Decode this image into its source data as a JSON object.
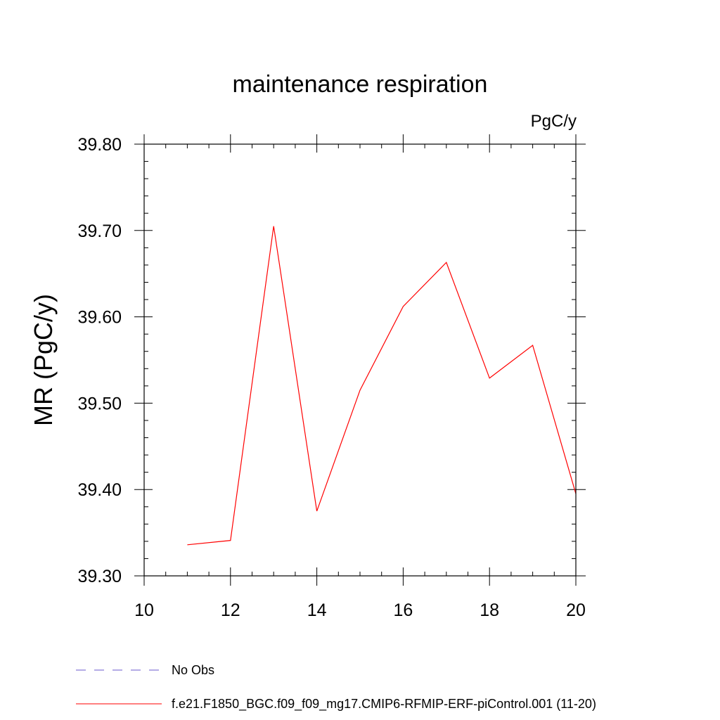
{
  "chart_data": {
    "type": "line",
    "title": "maintenance respiration",
    "units_label": "PgC/y",
    "ylabel": "MR  (PgC/y)",
    "xlabel": "",
    "xlim": [
      10,
      20
    ],
    "ylim": [
      39.3,
      39.8
    ],
    "x_ticks": [
      10,
      12,
      14,
      16,
      18,
      20
    ],
    "x_tick_labels": [
      "10",
      "12",
      "14",
      "16",
      "18",
      "20"
    ],
    "y_ticks": [
      39.3,
      39.4,
      39.5,
      39.6,
      39.7,
      39.8
    ],
    "y_tick_labels": [
      "39.30",
      "39.40",
      "39.50",
      "39.60",
      "39.70",
      "39.80"
    ],
    "x_minor_step": 0.5,
    "y_minor_step": 0.02,
    "grid": false,
    "legend_position": "bottom",
    "series": [
      {
        "name": "f.e21.F1850_BGC.f09_f09_mg17.CMIP6-RFMIP-ERF-piControl.001 (11-20)",
        "color": "#ff0000",
        "x": [
          11,
          12,
          13,
          14,
          15,
          16,
          17,
          18,
          19,
          20
        ],
        "y": [
          39.336,
          39.341,
          39.705,
          39.375,
          39.515,
          39.612,
          39.663,
          39.529,
          39.567,
          39.395
        ]
      }
    ],
    "legend": [
      {
        "label": "No Obs",
        "color": "#6a5acd",
        "dash": "dashed"
      },
      {
        "label": "f.e21.F1850_BGC.f09_f09_mg17.CMIP6-RFMIP-ERF-piControl.001 (11-20)",
        "color": "#ff0000",
        "dash": "solid"
      }
    ]
  }
}
